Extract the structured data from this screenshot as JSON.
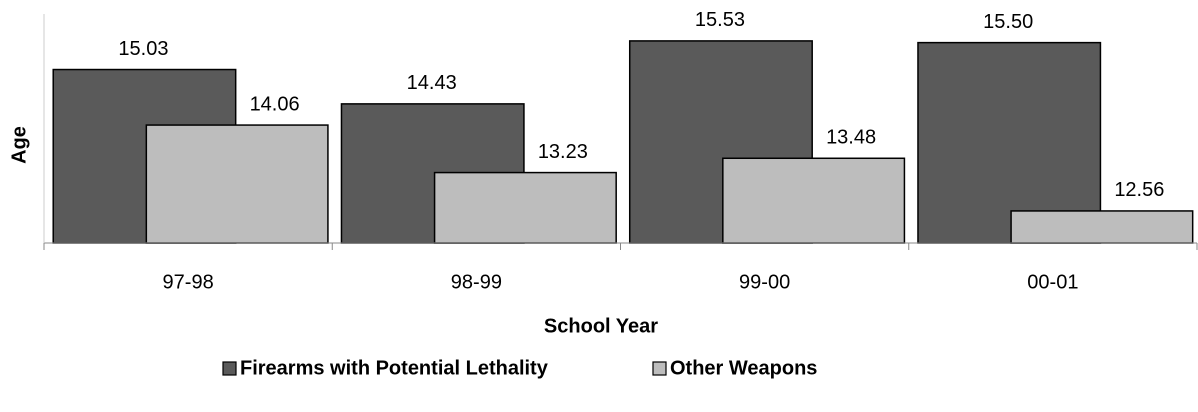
{
  "chart_data": {
    "type": "bar",
    "x_label": "School Year",
    "y_label": "Age",
    "categories": [
      "97-98",
      "98-99",
      "99-00",
      "00-01"
    ],
    "series": [
      {
        "name": "Firearms with Potential Lethality",
        "color": "#5a5a5a",
        "values": [
          15.03,
          14.43,
          15.53,
          15.5
        ],
        "value_labels": [
          "15.03",
          "14.43",
          "15.53",
          "15.50"
        ]
      },
      {
        "name": "Other Weapons",
        "color": "#bdbdbd",
        "values": [
          14.06,
          13.23,
          13.48,
          12.56
        ],
        "value_labels": [
          "14.06",
          "13.23",
          "13.48",
          "12.56"
        ]
      }
    ],
    "ylim": [
      12,
      16
    ],
    "grid": false,
    "legend": "bottom"
  }
}
